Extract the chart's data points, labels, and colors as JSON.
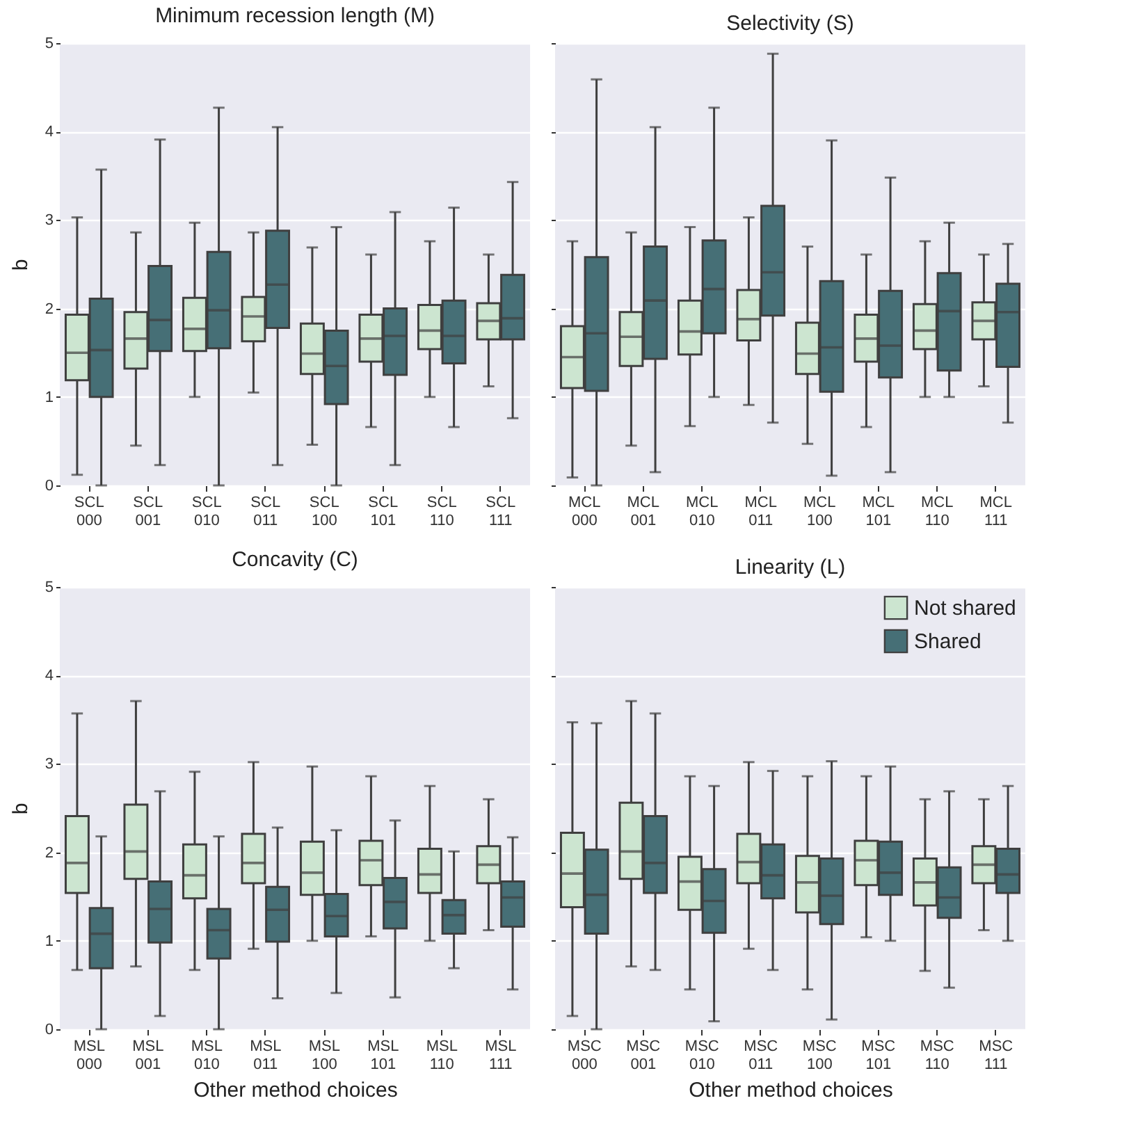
{
  "chart_data": [
    {
      "type": "box",
      "title": "Minimum recession length (M)",
      "ylabel": "b",
      "categories": [
        "SCL\n000",
        "SCL\n001",
        "SCL\n010",
        "SCL\n011",
        "SCL\n100",
        "SCL\n101",
        "SCL\n110",
        "SCL\n111"
      ],
      "ylim": [
        0,
        5
      ],
      "yticks": [
        0,
        1,
        2,
        3,
        4,
        5
      ],
      "grid": "y",
      "series": [
        {
          "color": "#cce5d0",
          "boxes": [
            {
              "low": 0.12,
              "q1": 1.19,
              "median": 1.5,
              "q3": 1.93,
              "high": 3.03
            },
            {
              "low": 0.45,
              "q1": 1.32,
              "median": 1.66,
              "q3": 1.96,
              "high": 2.86
            },
            {
              "low": 1.0,
              "q1": 1.52,
              "median": 1.77,
              "q3": 2.12,
              "high": 2.97
            },
            {
              "low": 1.05,
              "q1": 1.63,
              "median": 1.91,
              "q3": 2.13,
              "high": 2.86
            },
            {
              "low": 0.46,
              "q1": 1.26,
              "median": 1.49,
              "q3": 1.83,
              "high": 2.69
            },
            {
              "low": 0.66,
              "q1": 1.4,
              "median": 1.66,
              "q3": 1.93,
              "high": 2.61
            },
            {
              "low": 1.0,
              "q1": 1.54,
              "median": 1.75,
              "q3": 2.04,
              "high": 2.76
            },
            {
              "low": 1.12,
              "q1": 1.65,
              "median": 1.86,
              "q3": 2.06,
              "high": 2.61
            }
          ]
        },
        {
          "color": "#466f76",
          "boxes": [
            {
              "low": 0,
              "q1": 1.0,
              "median": 1.53,
              "q3": 2.11,
              "high": 3.57
            },
            {
              "low": 0.23,
              "q1": 1.52,
              "median": 1.87,
              "q3": 2.48,
              "high": 3.91
            },
            {
              "low": 0,
              "q1": 1.55,
              "median": 1.98,
              "q3": 2.64,
              "high": 4.27
            },
            {
              "low": 0.23,
              "q1": 1.78,
              "median": 2.27,
              "q3": 2.88,
              "high": 4.05
            },
            {
              "low": 0,
              "q1": 0.92,
              "median": 1.35,
              "q3": 1.75,
              "high": 2.92
            },
            {
              "low": 0.23,
              "q1": 1.25,
              "median": 1.69,
              "q3": 2.0,
              "high": 3.09
            },
            {
              "low": 0.66,
              "q1": 1.38,
              "median": 1.69,
              "q3": 2.09,
              "high": 3.14
            },
            {
              "low": 0.76,
              "q1": 1.65,
              "median": 1.89,
              "q3": 2.38,
              "high": 3.43
            }
          ]
        }
      ]
    },
    {
      "type": "box",
      "title": "Selectivity (S)",
      "categories": [
        "MCL\n000",
        "MCL\n001",
        "MCL\n010",
        "MCL\n011",
        "MCL\n100",
        "MCL\n101",
        "MCL\n110",
        "MCL\n111"
      ],
      "ylim": [
        0,
        5
      ],
      "yticks": [
        0,
        1,
        2,
        3,
        4,
        5
      ],
      "grid": "y",
      "tick_labels": "x",
      "series": [
        {
          "color": "#cce5d0",
          "boxes": [
            {
              "low": 0.09,
              "q1": 1.1,
              "median": 1.45,
              "q3": 1.8,
              "high": 2.76
            },
            {
              "low": 0.45,
              "q1": 1.35,
              "median": 1.68,
              "q3": 1.96,
              "high": 2.86
            },
            {
              "low": 0.67,
              "q1": 1.48,
              "median": 1.74,
              "q3": 2.09,
              "high": 2.92
            },
            {
              "low": 0.91,
              "q1": 1.64,
              "median": 1.88,
              "q3": 2.21,
              "high": 3.03
            },
            {
              "low": 0.47,
              "q1": 1.26,
              "median": 1.49,
              "q3": 1.84,
              "high": 2.7
            },
            {
              "low": 0.66,
              "q1": 1.4,
              "median": 1.66,
              "q3": 1.93,
              "high": 2.61
            },
            {
              "low": 1.0,
              "q1": 1.54,
              "median": 1.75,
              "q3": 2.05,
              "high": 2.76
            },
            {
              "low": 1.12,
              "q1": 1.65,
              "median": 1.86,
              "q3": 2.07,
              "high": 2.61
            }
          ]
        },
        {
          "color": "#466f76",
          "boxes": [
            {
              "low": 0,
              "q1": 1.07,
              "median": 1.72,
              "q3": 2.58,
              "high": 4.59
            },
            {
              "low": 0.15,
              "q1": 1.43,
              "median": 2.09,
              "q3": 2.7,
              "high": 4.05
            },
            {
              "low": 1.0,
              "q1": 1.72,
              "median": 2.22,
              "q3": 2.77,
              "high": 4.27
            },
            {
              "low": 0.71,
              "q1": 1.92,
              "median": 2.41,
              "q3": 3.16,
              "high": 4.88
            },
            {
              "low": 0.11,
              "q1": 1.06,
              "median": 1.56,
              "q3": 2.31,
              "high": 3.9
            },
            {
              "low": 0.15,
              "q1": 1.22,
              "median": 1.58,
              "q3": 2.2,
              "high": 3.48
            },
            {
              "low": 1.0,
              "q1": 1.3,
              "median": 1.97,
              "q3": 2.4,
              "high": 2.97
            },
            {
              "low": 0.71,
              "q1": 1.34,
              "median": 1.96,
              "q3": 2.28,
              "high": 2.73
            }
          ]
        }
      ]
    },
    {
      "type": "box",
      "title": "Concavity (C)",
      "ylabel": "b",
      "xlabel": "Other method choices",
      "categories": [
        "MSL\n000",
        "MSL\n001",
        "MSL\n010",
        "MSL\n011",
        "MSL\n100",
        "MSL\n101",
        "MSL\n110",
        "MSL\n111"
      ],
      "ylim": [
        0,
        5
      ],
      "yticks": [
        0,
        1,
        2,
        3,
        4,
        5
      ],
      "grid": "y",
      "series": [
        {
          "color": "#cce5d0",
          "boxes": [
            {
              "low": 0.67,
              "q1": 1.54,
              "median": 1.88,
              "q3": 2.41,
              "high": 3.57
            },
            {
              "low": 0.71,
              "q1": 1.7,
              "median": 2.01,
              "q3": 2.54,
              "high": 3.71
            },
            {
              "low": 0.67,
              "q1": 1.48,
              "median": 1.74,
              "q3": 2.09,
              "high": 2.91
            },
            {
              "low": 0.91,
              "q1": 1.65,
              "median": 1.88,
              "q3": 2.21,
              "high": 3.02
            },
            {
              "low": 1.0,
              "q1": 1.52,
              "median": 1.77,
              "q3": 2.12,
              "high": 2.97
            },
            {
              "low": 1.05,
              "q1": 1.63,
              "median": 1.91,
              "q3": 2.13,
              "high": 2.86
            },
            {
              "low": 1.0,
              "q1": 1.54,
              "median": 1.75,
              "q3": 2.04,
              "high": 2.75
            },
            {
              "low": 1.12,
              "q1": 1.65,
              "median": 1.86,
              "q3": 2.07,
              "high": 2.6
            }
          ]
        },
        {
          "color": "#466f76",
          "boxes": [
            {
              "low": 0,
              "q1": 0.69,
              "median": 1.08,
              "q3": 1.37,
              "high": 2.18
            },
            {
              "low": 0.15,
              "q1": 0.98,
              "median": 1.36,
              "q3": 1.67,
              "high": 2.69
            },
            {
              "low": 0,
              "q1": 0.8,
              "median": 1.12,
              "q3": 1.36,
              "high": 2.18
            },
            {
              "low": 0.35,
              "q1": 0.99,
              "median": 1.35,
              "q3": 1.61,
              "high": 2.28
            },
            {
              "low": 0.41,
              "q1": 1.05,
              "median": 1.28,
              "q3": 1.53,
              "high": 2.25
            },
            {
              "low": 0.36,
              "q1": 1.14,
              "median": 1.44,
              "q3": 1.71,
              "high": 2.36
            },
            {
              "low": 0.69,
              "q1": 1.08,
              "median": 1.29,
              "q3": 1.46,
              "high": 2.01
            },
            {
              "low": 0.45,
              "q1": 1.16,
              "median": 1.49,
              "q3": 1.67,
              "high": 2.17
            }
          ]
        }
      ]
    },
    {
      "type": "box",
      "title": "Linearity (L)",
      "xlabel": "Other method choices",
      "categories": [
        "MSC\n000",
        "MSC\n001",
        "MSC\n010",
        "MSC\n011",
        "MSC\n100",
        "MSC\n101",
        "MSC\n110",
        "MSC\n111"
      ],
      "ylim": [
        0,
        5
      ],
      "yticks": [
        0,
        1,
        2,
        3,
        4,
        5
      ],
      "grid": "y",
      "tick_labels": "x",
      "legend": "top right",
      "series": [
        {
          "name": "Not shared",
          "color": "#cce5d0",
          "boxes": [
            {
              "low": 0.15,
              "q1": 1.38,
              "median": 1.76,
              "q3": 2.22,
              "high": 3.47
            },
            {
              "low": 0.71,
              "q1": 1.7,
              "median": 2.01,
              "q3": 2.56,
              "high": 3.71
            },
            {
              "low": 0.45,
              "q1": 1.35,
              "median": 1.67,
              "q3": 1.95,
              "high": 2.86
            },
            {
              "low": 0.91,
              "q1": 1.65,
              "median": 1.89,
              "q3": 2.21,
              "high": 3.02
            },
            {
              "low": 0.45,
              "q1": 1.32,
              "median": 1.66,
              "q3": 1.96,
              "high": 2.86
            },
            {
              "low": 1.04,
              "q1": 1.63,
              "median": 1.91,
              "q3": 2.13,
              "high": 2.86
            },
            {
              "low": 0.66,
              "q1": 1.4,
              "median": 1.66,
              "q3": 1.93,
              "high": 2.6
            },
            {
              "low": 1.12,
              "q1": 1.65,
              "median": 1.86,
              "q3": 2.07,
              "high": 2.6
            }
          ]
        },
        {
          "name": "Shared",
          "color": "#466f76",
          "boxes": [
            {
              "low": 0,
              "q1": 1.08,
              "median": 1.52,
              "q3": 2.03,
              "high": 3.46
            },
            {
              "low": 0.67,
              "q1": 1.54,
              "median": 1.88,
              "q3": 2.41,
              "high": 3.57
            },
            {
              "low": 0.09,
              "q1": 1.09,
              "median": 1.45,
              "q3": 1.81,
              "high": 2.75
            },
            {
              "low": 0.67,
              "q1": 1.48,
              "median": 1.74,
              "q3": 2.09,
              "high": 2.92
            },
            {
              "low": 0.11,
              "q1": 1.19,
              "median": 1.51,
              "q3": 1.93,
              "high": 3.03
            },
            {
              "low": 1.0,
              "q1": 1.52,
              "median": 1.77,
              "q3": 2.12,
              "high": 2.97
            },
            {
              "low": 0.47,
              "q1": 1.26,
              "median": 1.49,
              "q3": 1.83,
              "high": 2.69
            },
            {
              "low": 1.0,
              "q1": 1.54,
              "median": 1.75,
              "q3": 2.04,
              "high": 2.75
            }
          ]
        }
      ]
    }
  ]
}
